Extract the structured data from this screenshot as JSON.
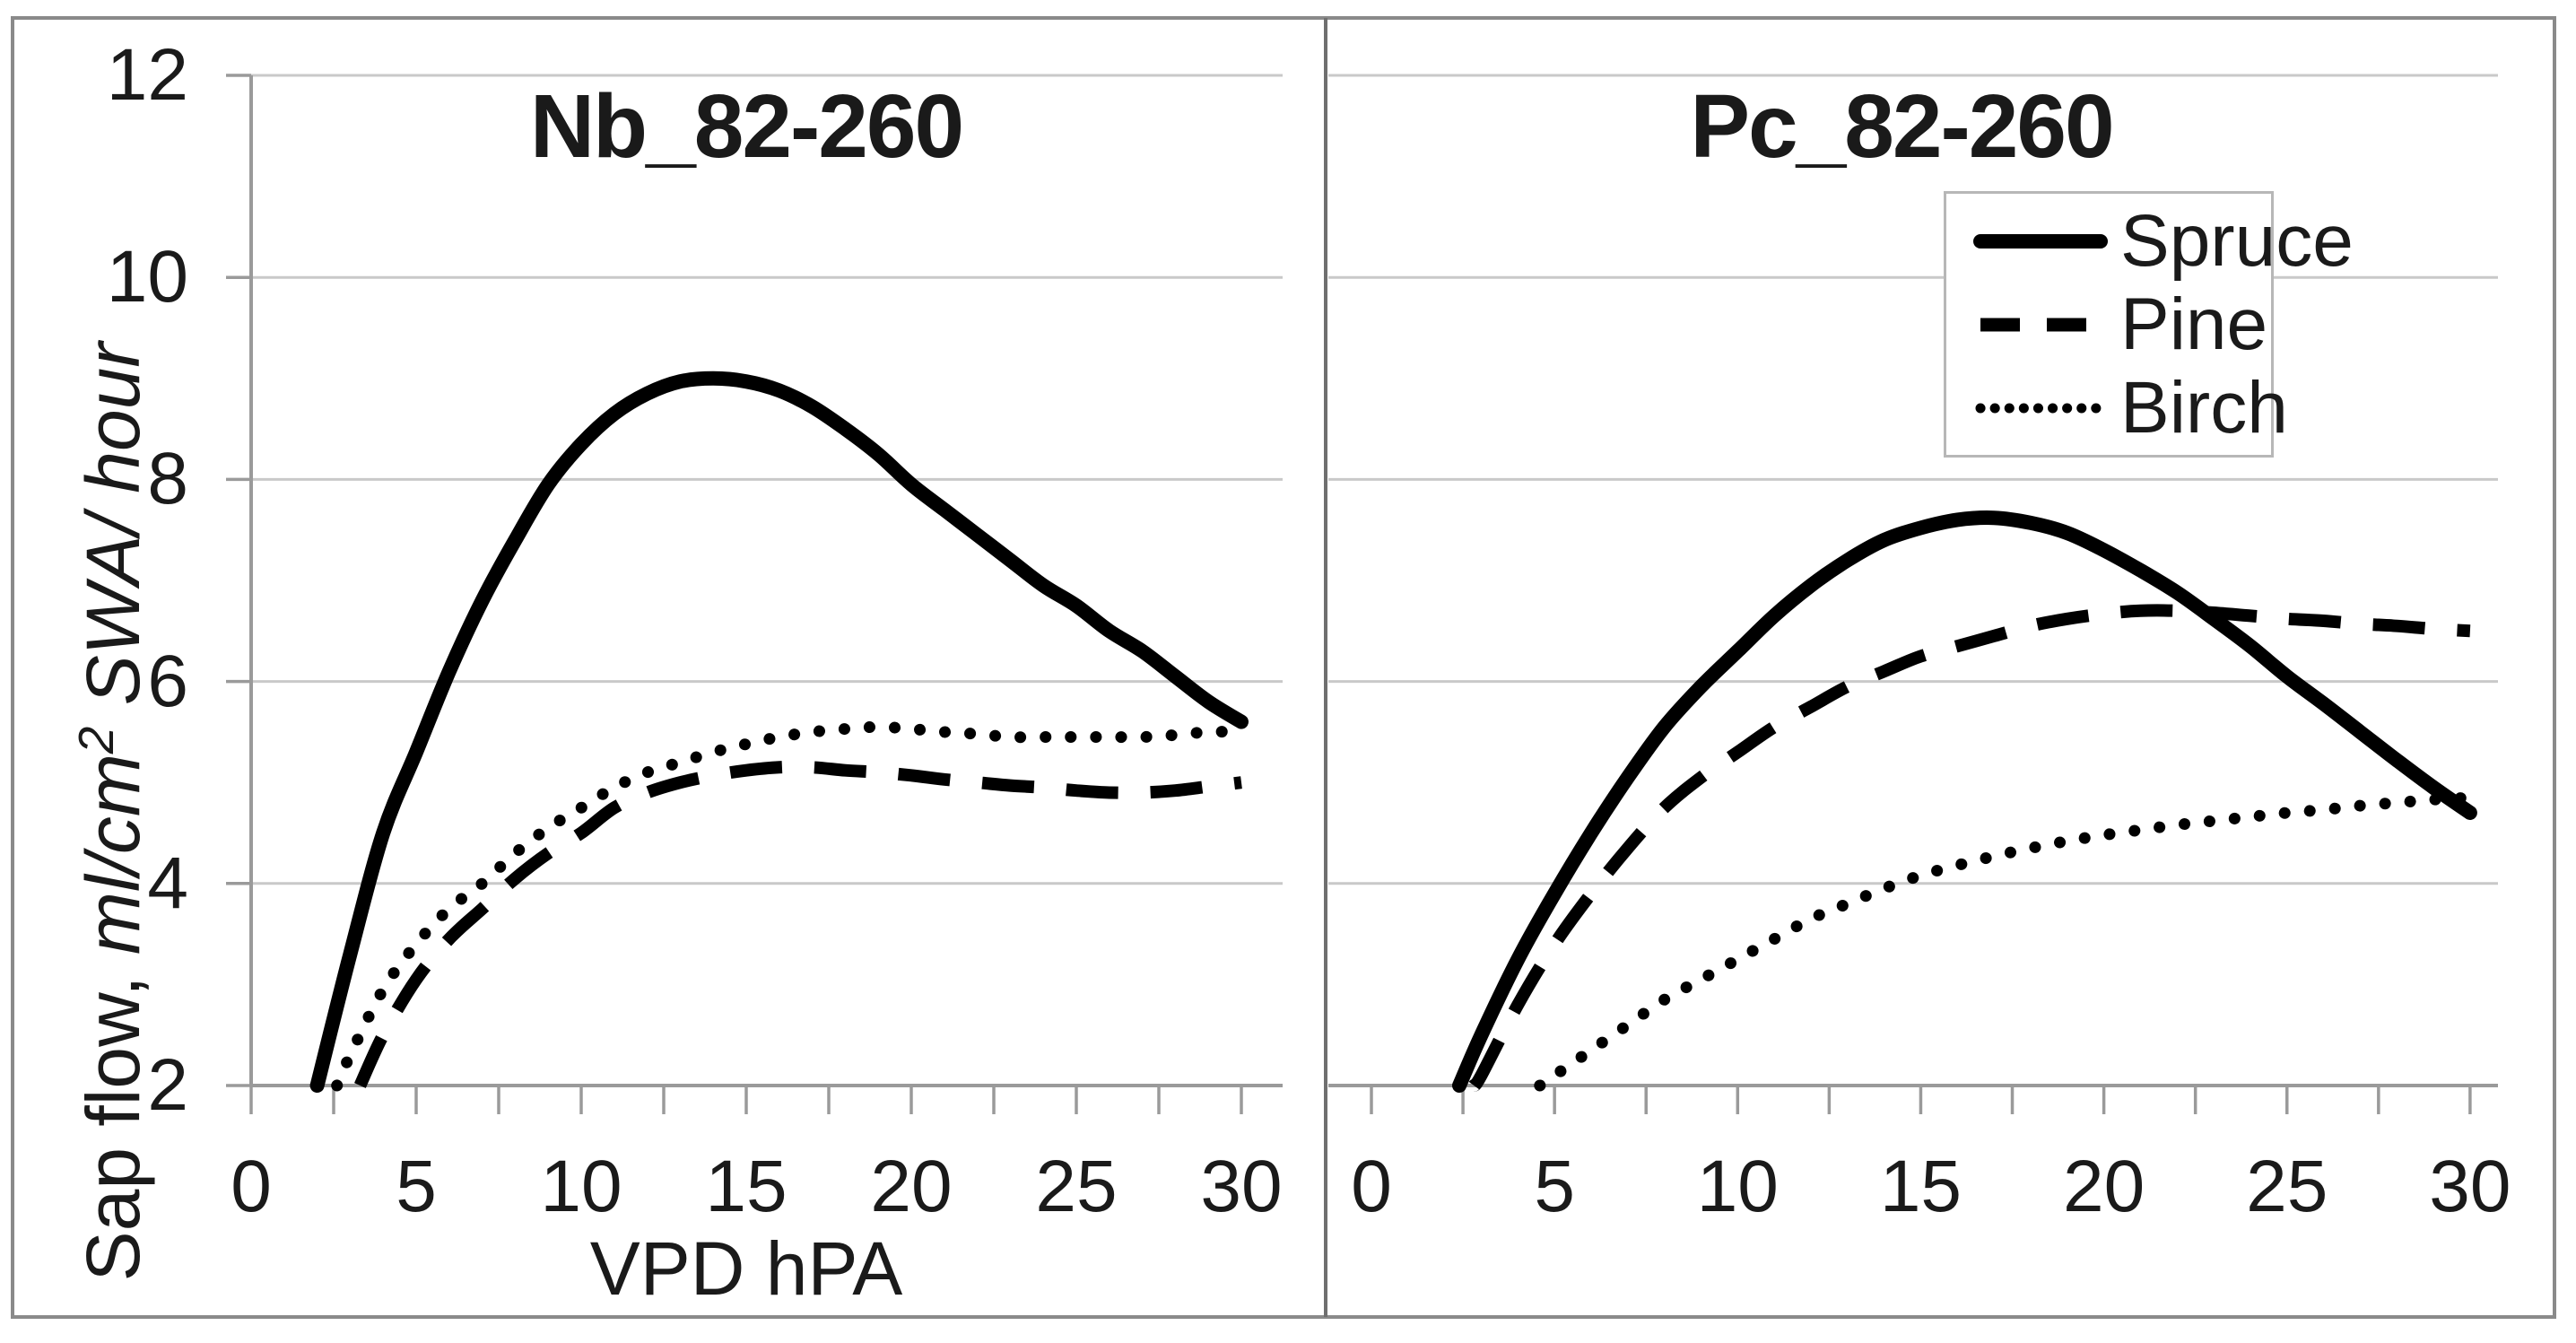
{
  "figure": {
    "background_color": "#ffffff",
    "border_color": "#8a8a8a",
    "divider_color": "#6f6f6f",
    "text_color": "#1a1a1a",
    "gridline_color": "#c9c9c9",
    "axis_color": "#9a9a9a",
    "series_color": "#000000",
    "legend_border_color": "#b7b7b7"
  },
  "y_axis": {
    "title_regular": "Sap flow, ",
    "title_italic_pre_sup": "ml/cm",
    "title_sup": "2",
    "title_italic_post_sup": " SWA/ hour",
    "ticks": [
      12,
      10,
      8,
      6,
      4,
      2
    ],
    "range": [
      2,
      12
    ]
  },
  "x_axis": {
    "title": "VPD hPA",
    "ticks": [
      0,
      5,
      10,
      15,
      20,
      25,
      30
    ],
    "minor_tick_step": 2.5,
    "range": [
      0,
      30
    ]
  },
  "legend": {
    "position": "top-right",
    "entries": [
      {
        "label": "Spruce",
        "line_style": "solid"
      },
      {
        "label": "Pine",
        "line_style": "dashed"
      },
      {
        "label": "Birch",
        "line_style": "dotted"
      }
    ]
  },
  "chart_data": [
    {
      "type": "line",
      "title": "Nb_82-260",
      "xlabel": "VPD hPA",
      "ylabel": "Sap flow, ml/cm2 SWA/ hour",
      "xlim": [
        0,
        30
      ],
      "ylim": [
        2,
        12
      ],
      "grid": "horizontal",
      "series": [
        {
          "name": "Spruce",
          "line_style": "solid",
          "color": "#000000",
          "x": [
            2,
            3,
            4,
            5,
            6,
            7,
            8,
            9,
            10,
            11,
            12,
            13,
            14,
            15,
            16,
            17,
            18,
            19,
            20,
            21,
            22,
            23,
            24,
            25,
            26,
            27,
            28,
            29,
            30
          ],
          "y": [
            2.0,
            3.3,
            4.5,
            5.3,
            6.1,
            6.8,
            7.4,
            7.95,
            8.35,
            8.65,
            8.85,
            8.97,
            9.0,
            8.97,
            8.88,
            8.72,
            8.5,
            8.25,
            7.95,
            7.7,
            7.45,
            7.2,
            6.95,
            6.75,
            6.5,
            6.3,
            6.05,
            5.8,
            5.6
          ]
        },
        {
          "name": "Pine",
          "line_style": "dashed",
          "color": "#000000",
          "x": [
            3.3,
            4,
            5,
            6,
            7,
            8,
            9,
            10,
            11,
            12,
            13,
            14,
            15,
            16,
            17,
            18,
            19,
            20,
            21,
            22,
            23,
            24,
            25,
            26,
            27,
            28,
            29,
            30
          ],
          "y": [
            2.0,
            2.5,
            3.05,
            3.45,
            3.75,
            4.05,
            4.3,
            4.5,
            4.75,
            4.9,
            5.0,
            5.07,
            5.12,
            5.15,
            5.15,
            5.12,
            5.1,
            5.07,
            5.03,
            5.0,
            4.97,
            4.95,
            4.92,
            4.9,
            4.9,
            4.92,
            4.96,
            5.0
          ]
        },
        {
          "name": "Birch",
          "line_style": "dotted",
          "color": "#000000",
          "x": [
            2.6,
            3,
            4,
            5,
            6,
            7,
            8,
            9,
            10,
            11,
            12,
            13,
            14,
            15,
            16,
            17,
            18,
            19,
            20,
            21,
            22,
            23,
            24,
            25,
            26,
            27,
            28,
            29,
            30
          ],
          "y": [
            2.0,
            2.3,
            2.95,
            3.4,
            3.75,
            4.0,
            4.3,
            4.55,
            4.75,
            4.95,
            5.1,
            5.2,
            5.3,
            5.38,
            5.45,
            5.5,
            5.53,
            5.55,
            5.53,
            5.5,
            5.48,
            5.45,
            5.45,
            5.45,
            5.45,
            5.45,
            5.47,
            5.5,
            5.5
          ]
        }
      ]
    },
    {
      "type": "line",
      "title": "Pc_82-260",
      "xlabel": "",
      "ylabel": "Sap flow, ml/cm2 SWA/ hour",
      "xlim": [
        0,
        30
      ],
      "ylim": [
        2,
        12
      ],
      "grid": "horizontal",
      "series": [
        {
          "name": "Spruce",
          "line_style": "solid",
          "color": "#000000",
          "x": [
            2.4,
            3,
            4,
            5,
            6,
            7,
            8,
            9,
            10,
            11,
            12,
            13,
            14,
            15,
            16,
            17,
            18,
            19,
            20,
            21,
            22,
            23,
            24,
            25,
            26,
            27,
            28,
            29,
            30
          ],
          "y": [
            2.0,
            2.5,
            3.25,
            3.9,
            4.5,
            5.05,
            5.55,
            5.95,
            6.3,
            6.65,
            6.95,
            7.2,
            7.4,
            7.52,
            7.6,
            7.62,
            7.57,
            7.47,
            7.3,
            7.1,
            6.88,
            6.62,
            6.35,
            6.05,
            5.78,
            5.5,
            5.22,
            4.95,
            4.7
          ]
        },
        {
          "name": "Pine",
          "line_style": "dashed",
          "color": "#000000",
          "x": [
            2.8,
            3,
            4,
            5,
            6,
            7,
            8,
            9,
            10,
            11,
            12,
            13,
            14,
            15,
            16,
            17,
            18,
            19,
            20,
            21,
            22,
            23,
            24,
            25,
            26,
            27,
            28,
            29,
            30
          ],
          "y": [
            2.0,
            2.1,
            2.8,
            3.4,
            3.9,
            4.35,
            4.75,
            5.05,
            5.3,
            5.55,
            5.75,
            5.95,
            6.1,
            6.25,
            6.35,
            6.45,
            6.55,
            6.62,
            6.67,
            6.7,
            6.7,
            6.68,
            6.65,
            6.62,
            6.6,
            6.57,
            6.55,
            6.52,
            6.5
          ]
        },
        {
          "name": "Birch",
          "line_style": "dotted",
          "color": "#000000",
          "x": [
            4.6,
            5,
            6,
            7,
            8,
            9,
            10,
            11,
            12,
            13,
            14,
            15,
            16,
            17,
            18,
            19,
            20,
            21,
            22,
            23,
            24,
            25,
            26,
            27,
            28,
            29,
            30
          ],
          "y": [
            2.0,
            2.1,
            2.35,
            2.6,
            2.85,
            3.05,
            3.25,
            3.45,
            3.65,
            3.8,
            3.95,
            4.08,
            4.18,
            4.27,
            4.35,
            4.42,
            4.48,
            4.53,
            4.58,
            4.62,
            4.66,
            4.7,
            4.73,
            4.77,
            4.8,
            4.83,
            4.85
          ]
        }
      ]
    }
  ]
}
